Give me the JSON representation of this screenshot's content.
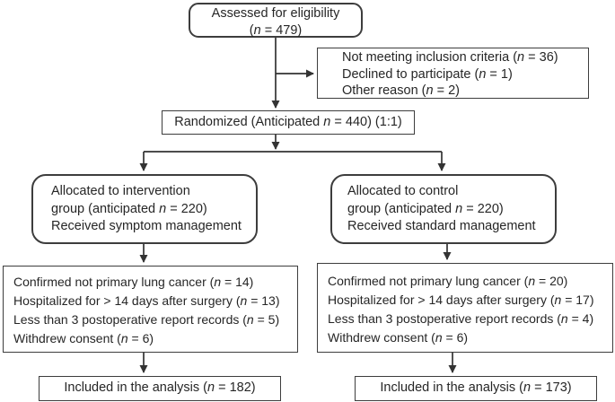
{
  "colors": {
    "line": "#333333",
    "border": "#3d3d3d",
    "text": "#262626",
    "background": "#ffffff"
  },
  "boxes": {
    "assessed": {
      "lines": [
        "Assessed for eligibility",
        "(n = 479)"
      ]
    },
    "excluded": {
      "lines": [
        "Not meeting inclusion criteria (n = 36)",
        "Declined to participate (n = 1)",
        "Other reason (n = 2)"
      ]
    },
    "randomized": {
      "text": "Randomized (Anticipated n = 440) (1:1)"
    },
    "allocation_intervention": {
      "lines": [
        "Allocated to intervention",
        "group (anticipated n = 220)",
        "Received symptom management"
      ]
    },
    "allocation_control": {
      "lines": [
        "Allocated to control",
        "group (anticipated n = 220)",
        "Received standard management"
      ]
    },
    "exclusion_intervention": {
      "lines": [
        "Confirmed not primary lung cancer (n = 14)",
        "Hospitalized for > 14 days after surgery (n = 13)",
        "Less than 3 postoperative report records (n = 5)",
        "Withdrew consent (n = 6)"
      ]
    },
    "exclusion_control": {
      "lines": [
        "Confirmed not primary lung cancer (n = 20)",
        "Hospitalized for > 14 days after surgery (n = 17)",
        "Less than 3 postoperative report records (n = 4)",
        "Withdrew consent (n = 6)"
      ]
    },
    "included_intervention": {
      "text": "Included in the analysis (n = 182)"
    },
    "included_control": {
      "text": "Included in the analysis (n = 173)"
    }
  }
}
